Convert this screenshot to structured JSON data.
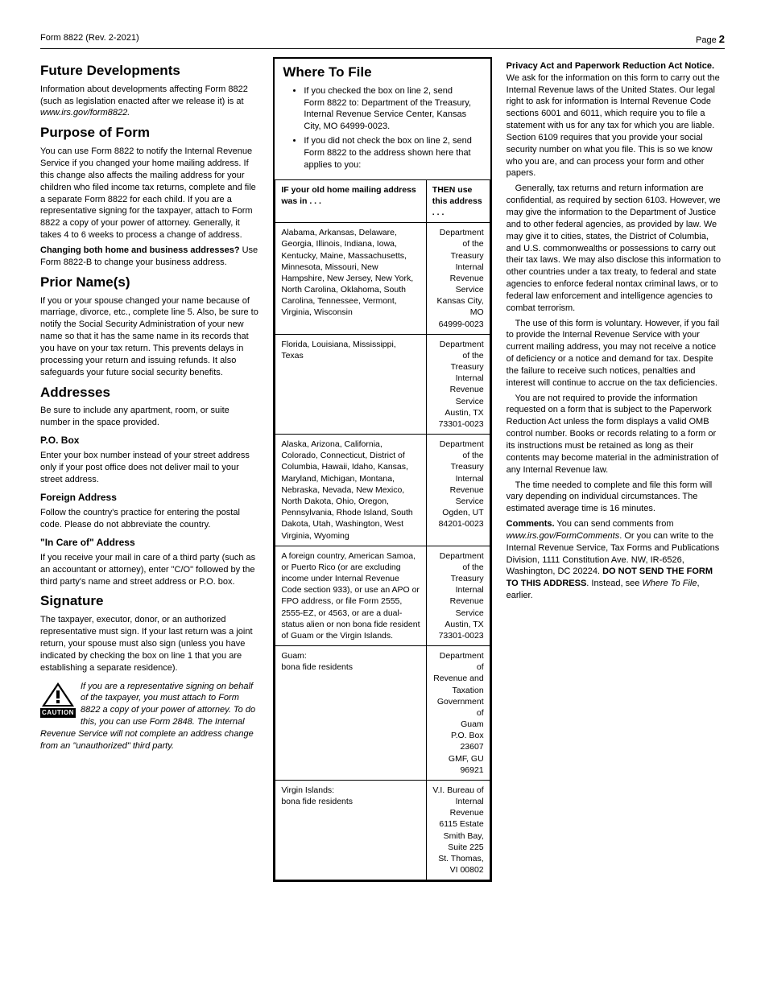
{
  "header": {
    "form_ref": "Form 8822 (Rev. 2-2021)",
    "page_label": "Page",
    "page_num": "2"
  },
  "col1": {
    "s1": {
      "title": "Future Developments",
      "p1a": "Information about developments affecting Form 8822 (such as legislation enacted after we release it) is at ",
      "p1b": "www.irs.gov/form8822."
    },
    "s2": {
      "title": "Purpose of Form",
      "p1": "You can use Form 8822 to notify the Internal Revenue Service if you changed your home mailing address. If this change also affects the mailing  address for your children who filed income tax  returns, complete and file a separate Form  8822 for each child. If you are a representative signing for the taxpayer, attach to Form 8822 a copy of your power of attorney. Generally, it takes 4 to 6 weeks to process a change of address.",
      "p2a": "Changing both home and business addresses?",
      "p2b": " Use Form 8822-B to change your business address."
    },
    "s3": {
      "title": "Prior Name(s)",
      "p1": "If you or your spouse changed your name because of marriage, divorce, etc., complete line 5. Also, be sure to notify the Social Security Administration of your new name so that it has the same name in its records that you have on your tax return. This prevents delays in processing your return and issuing refunds. It also safeguards your future social security benefits."
    },
    "s4": {
      "title": "Addresses",
      "p1": "Be sure to include any apartment, room, or suite number in the space provided.",
      "h_po": "P.O. Box",
      "p_po": "Enter your box number instead of your street address only if your post office does not deliver mail to your street address.",
      "h_fa": "Foreign Address",
      "p_fa": "Follow the country's practice for entering the postal code. Please do not abbreviate the country.",
      "h_co": "\"In Care of\" Address",
      "p_co": "If you receive your mail in care of a third party (such as an accountant or attorney), enter \"C/O\" followed by the third party's name and street address or P.O. box."
    },
    "s5": {
      "title": "Signature",
      "p1": "The taxpayer, executor, donor, or an authorized representative must sign. If your last return was a joint return, your spouse must also sign (unless you have indicated by checking the box on line 1 that you are establishing a separate residence).",
      "caution": "If you are a representative signing on behalf of the taxpayer, you must attach to Form 8822 a copy of your power of attorney. To do this, you can use Form 2848. The Internal Revenue Service will not complete an address change from an \"unauthorized\" third party.",
      "caution_label": "CAUTION"
    }
  },
  "col2": {
    "title": "Where To File",
    "b1": "If you checked the box on line 2, send Form 8822 to: Department of the Treasury, Internal Revenue Service Center, Kansas City, MO 64999-0023.",
    "b2": "If you did not check the box on line 2, send Form 8822 to the address shown here that applies to you:",
    "th1": "IF your old home mailing address was in . . .",
    "th2": "THEN use this address . . .",
    "rows": [
      {
        "states": "Alabama, Arkansas, Delaware, Georgia, Illinois, Indiana, Iowa, Kentucky, Maine, Massachusetts, Minnesota, Missouri, New Hampshire, New Jersey, New York, North Carolina, Oklahoma, South Carolina, Tennessee, Vermont, Virginia, Wisconsin",
        "addr": "Department of the\nTreasury\nInternal Revenue\nService\nKansas City, MO\n64999-0023"
      },
      {
        "states": "Florida, Louisiana, Mississippi, Texas",
        "addr": "Department of the\nTreasury\nInternal Revenue\nService\nAustin, TX\n73301-0023"
      },
      {
        "states": "Alaska, Arizona, California, Colorado, Connecticut, District of Columbia, Hawaii, Idaho, Kansas, Maryland, Michigan, Montana, Nebraska, Nevada, New Mexico, North Dakota, Ohio, Oregon, Pennsylvania, Rhode Island, South Dakota, Utah, Washington, West Virginia, Wyoming",
        "addr": "Department of the\nTreasury\nInternal Revenue\nService\nOgden, UT\n84201-0023"
      },
      {
        "states": "A foreign country, American Samoa, or Puerto Rico (or are excluding income under Internal Revenue Code section 933), or use an APO or FPO address, or file Form 2555, 2555-EZ, or 4563, or are a dual-status alien or non bona fide resident of Guam or the Virgin Islands.",
        "addr": "Department of the\nTreasury\nInternal Revenue\nService\nAustin, TX\n73301-0023"
      },
      {
        "states": "Guam:\nbona fide residents",
        "addr": "Department of\nRevenue and\nTaxation\nGovernment of\nGuam\nP.O. Box 23607\nGMF, GU 96921"
      },
      {
        "states": "Virgin Islands:\nbona fide residents",
        "addr": "V.I. Bureau of\nInternal Revenue\n6115 Estate\nSmith Bay,\nSuite 225\nSt. Thomas, VI 00802"
      }
    ]
  },
  "col3": {
    "h1": "Privacy Act and Paperwork Reduction Act Notice.",
    "p1": " We ask for the information on this form to carry out the Internal Revenue laws of the United States. Our legal right to ask for information is Internal Revenue Code sections 6001 and 6011, which require you to file a statement with us for any tax for which you are liable. Section 6109 requires that you provide your social security number on what you file. This is so we know who you are, and can process your form and other papers.",
    "p2": "Generally, tax returns and return information are confidential, as required by section 6103. However, we may give the information to the Department of Justice and to other federal agencies, as provided by law. We may give it to cities, states, the District of Columbia, and U.S. commonwealths or possessions to carry out their tax laws. We may also disclose this information to other countries under a tax treaty, to federal and state agencies to enforce federal nontax criminal laws, or to federal law enforcement and intelligence agencies to combat terrorism.",
    "p3": "The use of this form is voluntary. However, if you fail to provide the Internal Revenue Service with your current mailing address, you may not receive a notice of deficiency or a notice and demand for tax. Despite the failure to receive such notices, penalties and interest will continue to accrue on the tax deficiencies.",
    "p4": "You are not required to provide the information requested on a form that is subject  to the Paperwork Reduction Act unless the form displays a valid OMB control number. Books or records relating to a form or its instructions must be retained as long as their contents may become material in the administration of any Internal Revenue law.",
    "p5": "The time needed to complete and file this form will vary depending on individual circumstances. The estimated average time is 16 minutes.",
    "c_label": "Comments.",
    "c1": " You can send comments from ",
    "c_link": "www.irs.gov/FormComments",
    "c2": ". Or you can write to the Internal Revenue Service, Tax Forms and Publications Division, 1111 Constitution Ave. NW, IR-6526, Washington, DC 20224. ",
    "c_bold": "DO NOT SEND THE FORM TO THIS ADDRESS",
    "c3": ". Instead, see ",
    "c_where": "Where To File",
    "c4": ", earlier."
  }
}
